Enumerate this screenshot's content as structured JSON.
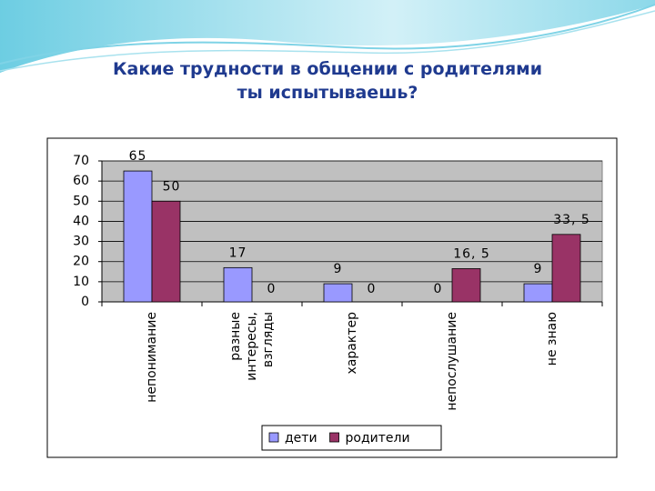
{
  "chart_data": {
    "type": "bar",
    "title": "Какие трудности в общении с родителями ты испытываешь?",
    "categories": [
      "непонимание",
      "разные\nинтересы,\nвзгляды",
      "характер",
      "непослушание",
      "не знаю"
    ],
    "series": [
      {
        "name": "дети",
        "color": "#9999ff",
        "values": [
          65,
          17,
          9,
          0,
          9
        ]
      },
      {
        "name": "родители",
        "color": "#993366",
        "values": [
          50,
          0,
          0,
          16.5,
          33.5
        ],
        "value_labels": [
          "50",
          "0",
          "0",
          "16, 5",
          "33, 5"
        ]
      }
    ],
    "ylim": [
      0,
      70
    ],
    "yticks": [
      0,
      10,
      20,
      30,
      40,
      50,
      60,
      70
    ],
    "grid": true,
    "legend": "bottom"
  }
}
